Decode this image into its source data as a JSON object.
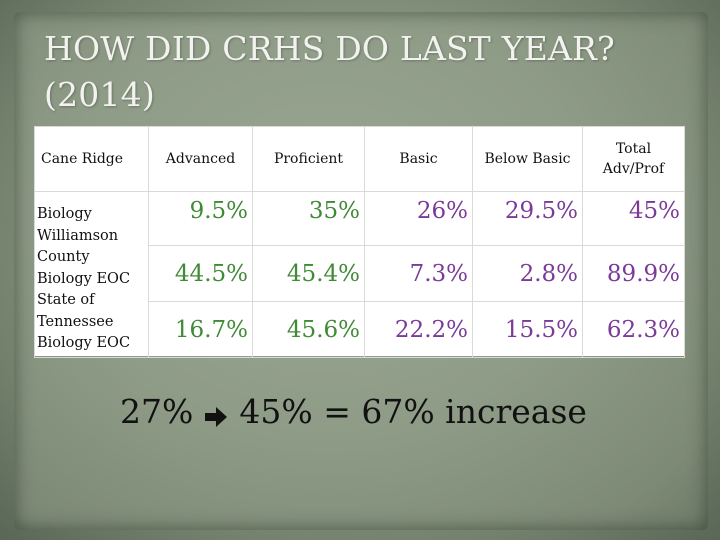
{
  "title": "HOW DID CRHS DO LAST YEAR? (2014)",
  "colors": {
    "green": "#3f8a35",
    "purple": "#7b3a98"
  },
  "table": {
    "headers": [
      "Cane Ridge",
      "Advanced",
      "Proficient",
      "Basic",
      "Below Basic",
      "Total Adv/Prof"
    ],
    "row_labels": "Biology Williamson County Biology EOC State of Tennessee Biology EOC",
    "rows": [
      [
        "9.5%",
        "35%",
        "26%",
        "29.5%",
        "45%"
      ],
      [
        "44.5%",
        "45.4%",
        "7.3%",
        "2.8%",
        "89.9%"
      ],
      [
        "16.7%",
        "45.6%",
        "22.2%",
        "15.5%",
        "62.3%"
      ]
    ]
  },
  "summary": {
    "from": "27%",
    "arrow_icon": "right-arrow-icon",
    "result": "45% = 67% increase"
  }
}
